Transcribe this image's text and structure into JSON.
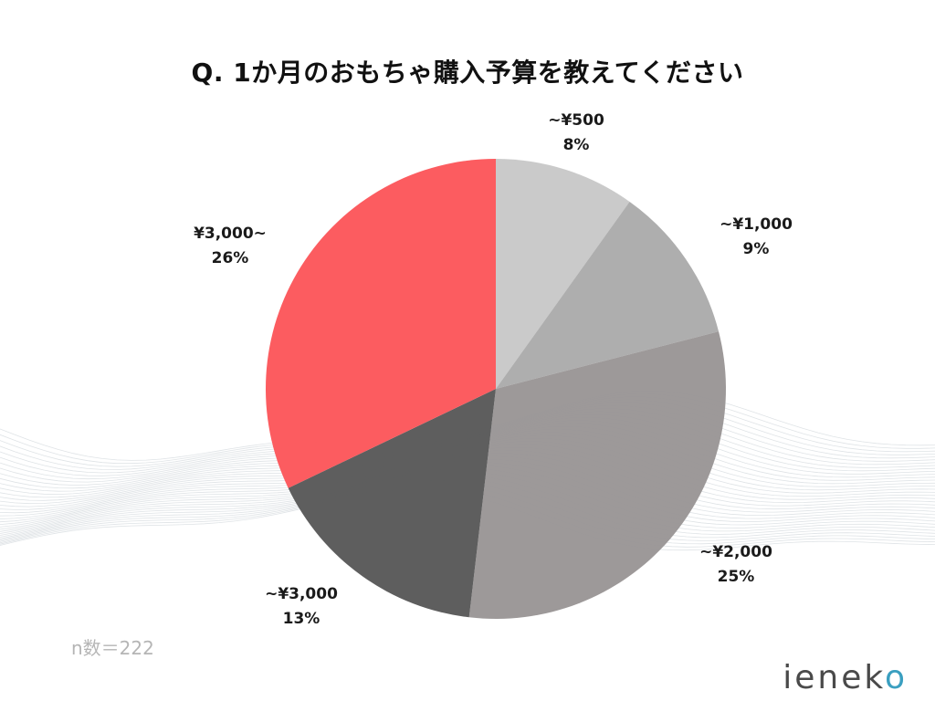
{
  "chart_data": {
    "type": "pie",
    "title": "Q. 1か月のおもちゃ購入予算を教えてください",
    "slices": [
      {
        "label": "~¥500",
        "percent_label": "8%",
        "value": 8,
        "color": "#c8c8c8"
      },
      {
        "label": "~¥1,000",
        "percent_label": "9%",
        "value": 9,
        "color": "#ababab"
      },
      {
        "label": "~¥2,000",
        "percent_label": "25%",
        "value": 25,
        "color": "#9a9696"
      },
      {
        "label": "~¥3,000",
        "percent_label": "13%",
        "value": 13,
        "color": "#595959"
      },
      {
        "label": "¥3,000~",
        "percent_label": "26%",
        "value": 26,
        "color": "#fc575b"
      }
    ]
  },
  "note": "n数＝222",
  "logo": {
    "text": "ienek",
    "accent": "o"
  }
}
